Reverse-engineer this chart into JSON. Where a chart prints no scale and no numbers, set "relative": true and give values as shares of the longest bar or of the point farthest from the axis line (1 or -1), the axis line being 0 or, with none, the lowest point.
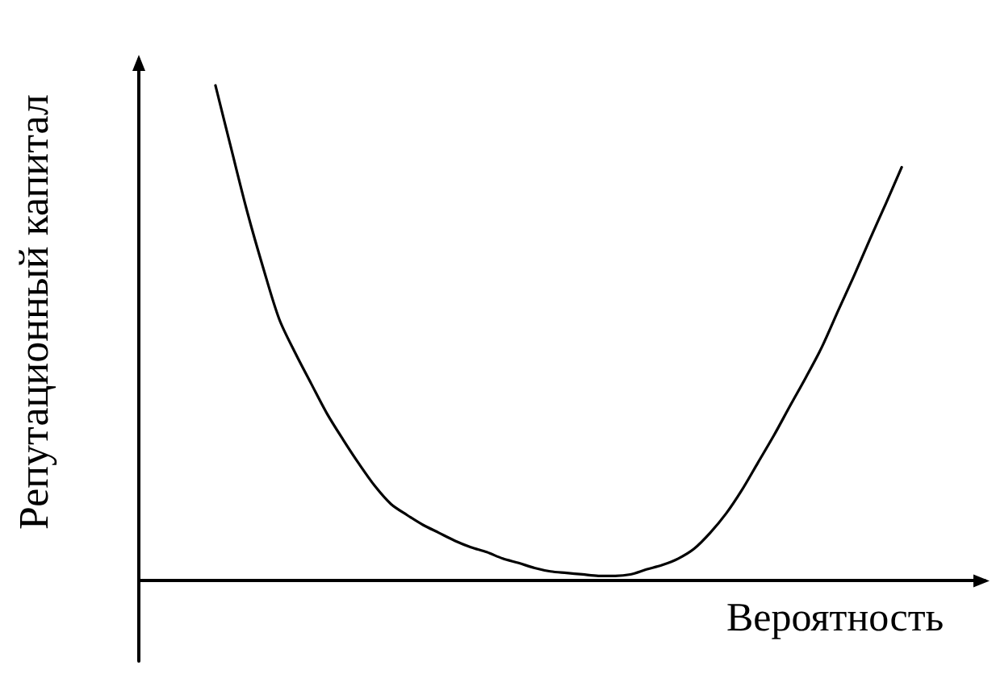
{
  "chart_data": {
    "type": "line",
    "xlabel": "Вероятность",
    "ylabel": "Репутационный капитал",
    "categories": [
      null,
      null,
      null,
      null,
      null,
      null,
      null,
      null,
      null,
      null,
      null,
      null,
      null,
      null,
      null,
      null,
      null,
      null,
      null,
      null,
      null,
      null,
      null,
      null,
      null,
      null,
      null,
      null,
      null,
      null,
      null,
      null,
      null,
      null,
      null,
      null,
      null,
      null,
      null,
      null,
      null,
      null,
      null,
      null
    ],
    "values": [
      1,
      0.871,
      0.744,
      0.631,
      0.528,
      0.46,
      0.398,
      0.337,
      0.285,
      0.236,
      0.191,
      0.155,
      0.133,
      0.113,
      0.097,
      0.081,
      0.068,
      0.058,
      0.045,
      0.036,
      0.026,
      0.019,
      0.016,
      0.013,
      0.01,
      0.01,
      0.013,
      0.023,
      0.032,
      0.045,
      0.065,
      0.097,
      0.136,
      0.184,
      0.239,
      0.294,
      0.353,
      0.411,
      0.472,
      0.544,
      0.615,
      0.689,
      0.761,
      0.835
    ],
    "color": "#000000",
    "relative": true,
    "tick_labels": false,
    "marker": "none",
    "line_style": "solid"
  }
}
